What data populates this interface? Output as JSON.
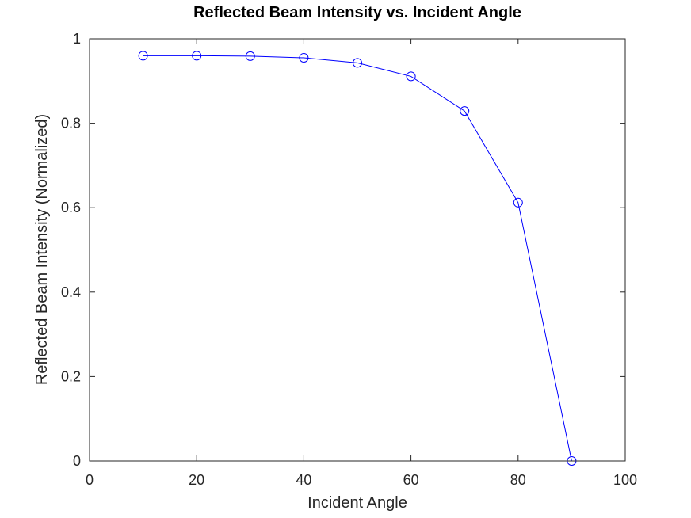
{
  "chart_data": {
    "type": "line",
    "title": "Reflected Beam Intensity vs. Incident Angle",
    "xlabel": "Incident Angle",
    "ylabel": "Reflected Beam Intensity (Normalized)",
    "xlim": [
      0,
      100
    ],
    "ylim": [
      0,
      1
    ],
    "xticks": [
      0,
      20,
      40,
      60,
      80,
      100
    ],
    "yticks": [
      0,
      0.2,
      0.4,
      0.6,
      0.8,
      1
    ],
    "xtick_labels": [
      "0",
      "20",
      "40",
      "60",
      "80",
      "100"
    ],
    "ytick_labels": [
      "0",
      "0.2",
      "0.4",
      "0.6",
      "0.8",
      "1"
    ],
    "grid": false,
    "marker": "circle",
    "series": [
      {
        "color": "#0000ff",
        "x": [
          10,
          20,
          30,
          40,
          50,
          60,
          70,
          80,
          90
        ],
        "y": [
          0.96,
          0.96,
          0.959,
          0.955,
          0.943,
          0.911,
          0.829,
          0.612,
          0.0
        ]
      }
    ]
  }
}
